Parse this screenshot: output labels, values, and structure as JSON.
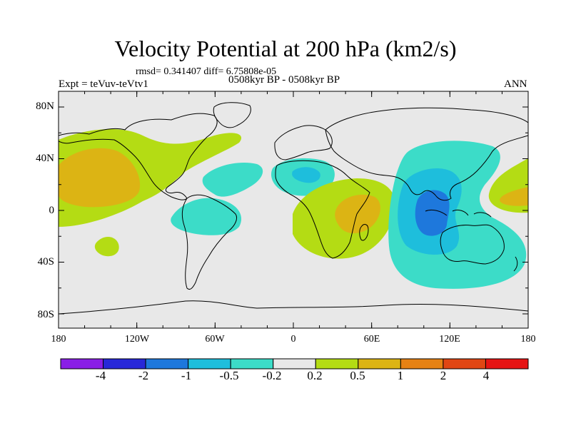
{
  "title": "Velocity Potential at 200 hPa (km2/s)",
  "stats": "rmsd= 0.341407 diff= 6.75808e-05",
  "experiment": "Expt = teVuv-teVtv1",
  "period": "0508kyr BP - 0508kyr BP",
  "season": "ANN",
  "y_ticks": [
    "80N",
    "40N",
    "0",
    "40S",
    "80S"
  ],
  "x_ticks": [
    "180",
    "120W",
    "60W",
    "0",
    "60E",
    "120E",
    "180"
  ],
  "colorbar": {
    "labels": [
      "-4",
      "-2",
      "-1",
      "-0.5",
      "-0.2",
      "0.2",
      "0.5",
      "1",
      "2",
      "4"
    ],
    "colors": [
      "#8a1ee6",
      "#2828d8",
      "#1e78dc",
      "#1ebedc",
      "#3cdcc8",
      "#e8e8e8",
      "#b4dc14",
      "#dcb414",
      "#e68214",
      "#e04614",
      "#e61414"
    ]
  },
  "map_colors": {
    "ocean": "#e8e8e8",
    "pos_1": "#b4dc14",
    "pos_2": "#dcb414",
    "pos_3": "#e68214",
    "neg_1": "#3cdcc8",
    "neg_2": "#1ebedc",
    "neg_3": "#1e78dc"
  }
}
